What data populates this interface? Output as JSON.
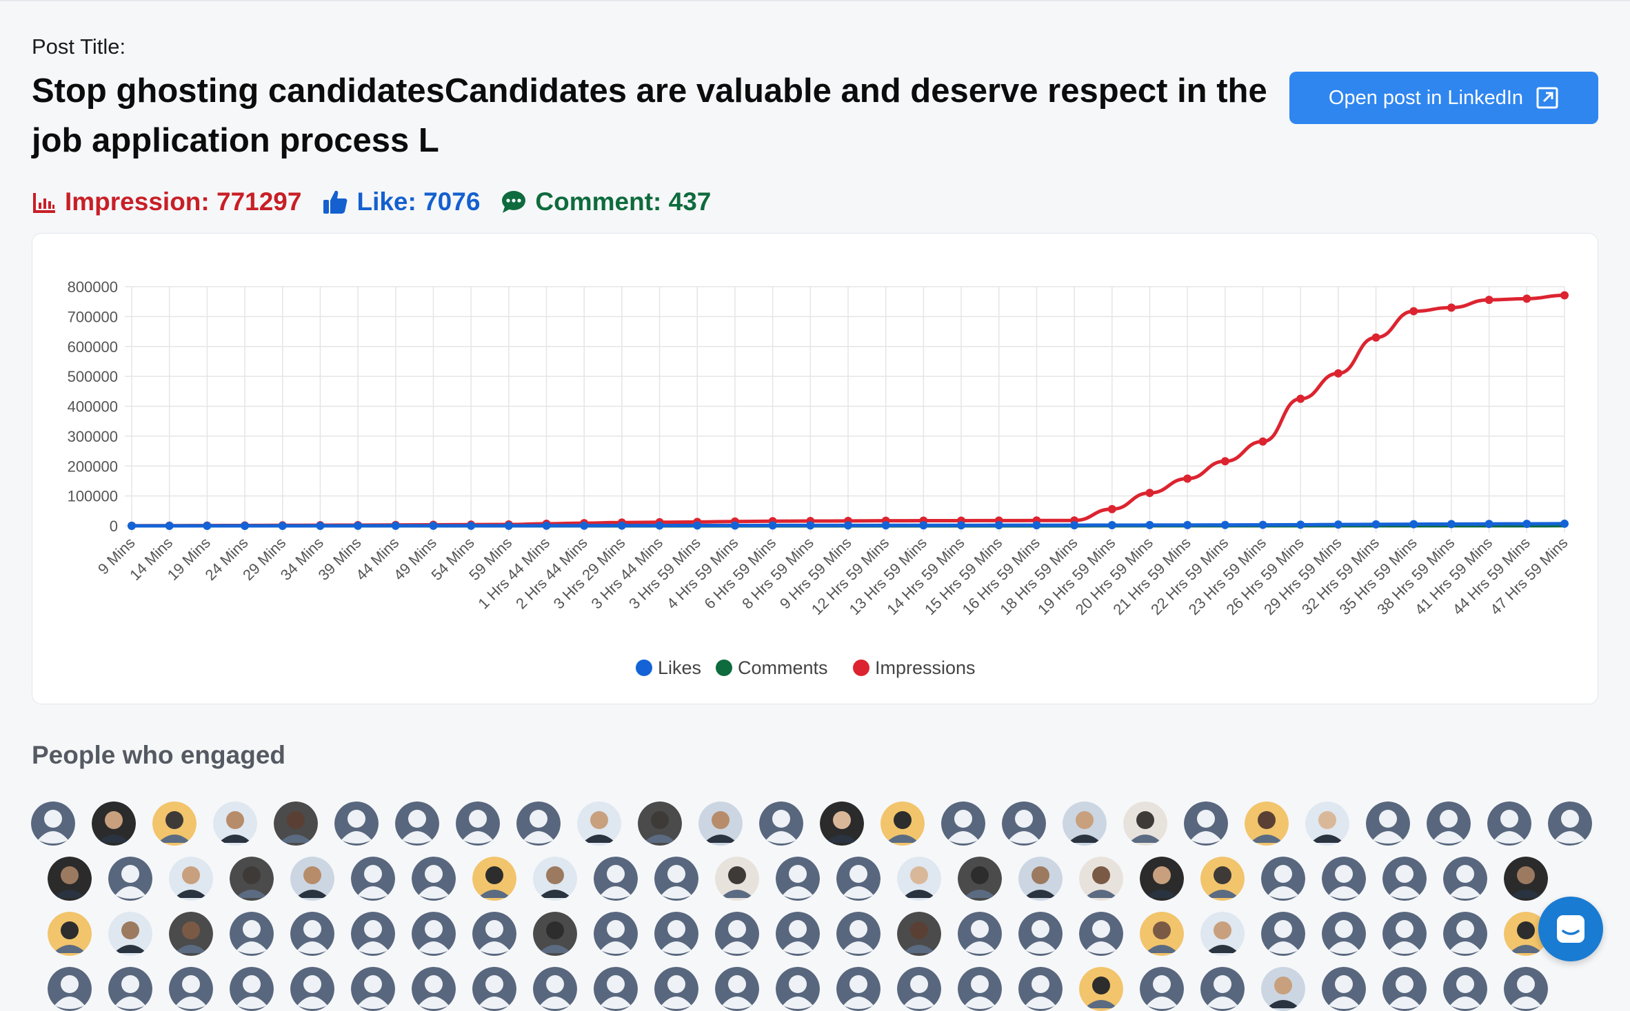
{
  "post": {
    "label": "Post Title:",
    "title": "Stop ghosting candidatesCandidates are valuable and deserve respect in the job application process L",
    "open_button_label": "Open post in LinkedIn"
  },
  "stats": {
    "impressions_text": "Impression: 771297",
    "likes_text": "Like: 7076",
    "comments_text": "Comment: 437"
  },
  "colors": {
    "likes": "#1463d6",
    "comments": "#0e6b3d",
    "impressions": "#dc2430",
    "button": "#2f86ef"
  },
  "chart_data": {
    "type": "line",
    "title": "",
    "xlabel": "",
    "ylabel": "",
    "ylim": [
      0,
      800000
    ],
    "yticks": [
      0,
      100000,
      200000,
      300000,
      400000,
      500000,
      600000,
      700000,
      800000
    ],
    "categories": [
      "9 Mins",
      "14 Mins",
      "19 Mins",
      "24 Mins",
      "29 Mins",
      "34 Mins",
      "39 Mins",
      "44 Mins",
      "49 Mins",
      "54 Mins",
      "59 Mins",
      "1 Hrs 44 Mins",
      "2 Hrs 44 Mins",
      "3 Hrs 29 Mins",
      "3 Hrs 44 Mins",
      "3 Hrs 59 Mins",
      "4 Hrs 59 Mins",
      "6 Hrs 59 Mins",
      "8 Hrs 59 Mins",
      "9 Hrs 59 Mins",
      "12 Hrs 59 Mins",
      "13 Hrs 59 Mins",
      "14 Hrs 59 Mins",
      "15 Hrs 59 Mins",
      "16 Hrs 59 Mins",
      "18 Hrs 59 Mins",
      "19 Hrs 59 Mins",
      "20 Hrs 59 Mins",
      "21 Hrs 59 Mins",
      "22 Hrs 59 Mins",
      "23 Hrs 59 Mins",
      "26 Hrs 59 Mins",
      "29 Hrs 59 Mins",
      "32 Hrs 59 Mins",
      "35 Hrs 59 Mins",
      "38 Hrs 59 Mins",
      "41 Hrs 59 Mins",
      "44 Hrs 59 Mins",
      "47 Hrs 59 Mins"
    ],
    "series": [
      {
        "name": "Likes",
        "values": [
          10,
          20,
          40,
          60,
          90,
          120,
          150,
          180,
          220,
          260,
          300,
          500,
          700,
          900,
          1000,
          1100,
          1200,
          1300,
          1400,
          1500,
          1600,
          1700,
          1800,
          1900,
          2000,
          2100,
          2300,
          2500,
          2700,
          3000,
          3300,
          3700,
          4200,
          4800,
          5400,
          5900,
          6300,
          6700,
          7076
        ]
      },
      {
        "name": "Comments",
        "values": [
          0,
          1,
          2,
          3,
          4,
          5,
          6,
          8,
          10,
          12,
          14,
          20,
          28,
          35,
          40,
          45,
          50,
          60,
          70,
          80,
          90,
          100,
          110,
          120,
          130,
          140,
          155,
          170,
          190,
          210,
          230,
          260,
          290,
          320,
          350,
          375,
          395,
          415,
          437
        ]
      },
      {
        "name": "Impressions",
        "values": [
          300,
          600,
          900,
          1200,
          1600,
          2000,
          2400,
          2900,
          3400,
          3900,
          4500,
          7000,
          9000,
          11000,
          12000,
          13000,
          14500,
          15500,
          16000,
          16500,
          17000,
          17200,
          17400,
          17600,
          17800,
          18000,
          56000,
          110000,
          158000,
          216000,
          282000,
          425000,
          510000,
          630000,
          718000,
          730000,
          756000,
          760000,
          771297
        ]
      }
    ],
    "legend": [
      "Likes",
      "Comments",
      "Impressions"
    ],
    "legend_position": "bottom",
    "grid": true
  },
  "engaged": {
    "title": "People who engaged"
  }
}
